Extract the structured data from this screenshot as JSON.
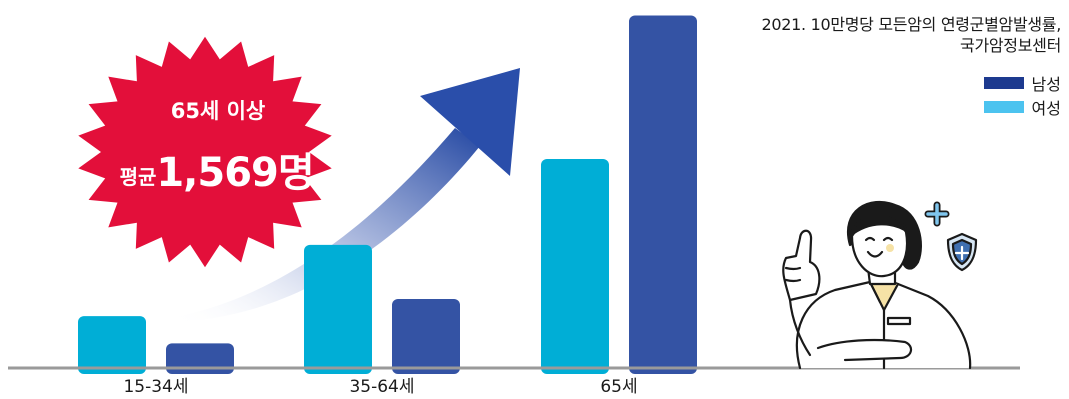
{
  "chart_data": {
    "type": "bar",
    "title": "",
    "xlabel": "",
    "ylabel": "",
    "categories": [
      "15-34세",
      "35-64세",
      "65세"
    ],
    "series": [
      {
        "name": "여성",
        "color": "#00aed6",
        "values": [
          41.8,
          99.2,
          168.4
        ]
      },
      {
        "name": "남성",
        "color": "#3453a4",
        "values": [
          19.8,
          55.6,
          284.0
        ]
      }
    ],
    "ylim": [
      0,
      290
    ],
    "grid": false,
    "legend_position": "top-right"
  },
  "source": {
    "line1": "2021. 10만명당 모든암의 연령군별암발생률,",
    "line2": "국가암정보센터"
  },
  "legend": [
    {
      "label": "남성",
      "color": "#1d3a8f"
    },
    {
      "label": "여성",
      "color": "#4cc3ef"
    }
  ],
  "callout": {
    "line1": "65세 이상",
    "prefix": "평균",
    "value": "1,569명",
    "color": "#e30f3a"
  },
  "baseline_color": "#9a9a9a"
}
